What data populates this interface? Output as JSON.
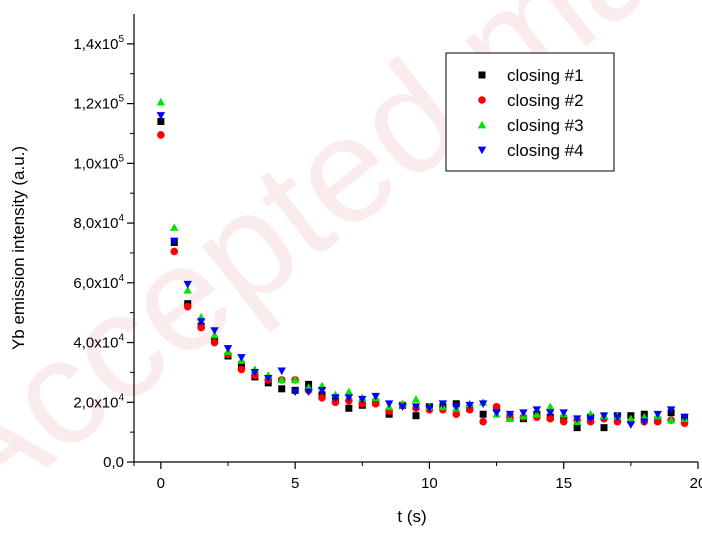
{
  "watermark": {
    "text": "Accepted manuscript"
  },
  "chart_data": {
    "type": "scatter",
    "xlabel": "t (s)",
    "ylabel": "Yb emission intensity (a.u.)",
    "xlim": [
      -1,
      20
    ],
    "ylim": [
      0,
      150000
    ],
    "x_ticks": [
      0,
      5,
      10,
      15,
      20
    ],
    "y_ticks": [
      {
        "value": 0,
        "mantissa": "0,0",
        "exponent": ""
      },
      {
        "value": 20000,
        "mantissa": "2,0x10",
        "exponent": "4"
      },
      {
        "value": 40000,
        "mantissa": "4,0x10",
        "exponent": "4"
      },
      {
        "value": 60000,
        "mantissa": "6,0x10",
        "exponent": "4"
      },
      {
        "value": 80000,
        "mantissa": "8,0x10",
        "exponent": "4"
      },
      {
        "value": 100000,
        "mantissa": "1,0x10",
        "exponent": "5"
      },
      {
        "value": 120000,
        "mantissa": "1,2x10",
        "exponent": "5"
      },
      {
        "value": 140000,
        "mantissa": "1,4x10",
        "exponent": "5"
      }
    ],
    "legend_position": "top-right",
    "series": [
      {
        "name": "closing #1",
        "marker": "square",
        "color": "#000000",
        "x": [
          0,
          0.5,
          1,
          1.5,
          2,
          2.5,
          3,
          3.5,
          4,
          4.5,
          5,
          5.5,
          6,
          6.5,
          7,
          7.5,
          8,
          8.5,
          9,
          9.5,
          10,
          10.5,
          11,
          11.5,
          12,
          12.5,
          13,
          13.5,
          14,
          14.5,
          15,
          15.5,
          16,
          16.5,
          17,
          17.5,
          18,
          18.5,
          19,
          19.5
        ],
        "y": [
          114000,
          73500,
          53000,
          45500,
          40500,
          35500,
          32500,
          28500,
          26500,
          24500,
          24000,
          26000,
          22500,
          21500,
          18000,
          19000,
          20000,
          16000,
          19000,
          15500,
          18500,
          18500,
          19500,
          18000,
          16000,
          18000,
          15000,
          14500,
          16000,
          15000,
          14500,
          11500,
          15000,
          11500,
          15500,
          15500,
          16000,
          14000,
          16500,
          15000
        ]
      },
      {
        "name": "closing #2",
        "marker": "circle",
        "color": "#ff0000",
        "x": [
          0,
          0.5,
          1,
          1.5,
          2,
          2.5,
          3,
          3.5,
          4,
          4.5,
          5,
          5.5,
          6,
          6.5,
          7,
          7.5,
          8,
          8.5,
          9,
          9.5,
          10,
          10.5,
          11,
          11.5,
          12,
          12.5,
          13,
          13.5,
          14,
          14.5,
          15,
          15.5,
          16,
          16.5,
          17,
          17.5,
          18,
          18.5,
          19,
          19.5
        ],
        "y": [
          109500,
          70500,
          52000,
          45000,
          40000,
          36000,
          31000,
          29000,
          27500,
          27500,
          27500,
          24000,
          21500,
          20000,
          20500,
          19500,
          19500,
          17000,
          19000,
          18000,
          17500,
          17500,
          16000,
          17500,
          13500,
          18500,
          15000,
          15000,
          15000,
          14500,
          13500,
          14000,
          13500,
          14500,
          13500,
          13500,
          13500,
          13500,
          14000,
          13000
        ]
      },
      {
        "name": "closing #3",
        "marker": "triangle-up",
        "color": "#00e600",
        "x": [
          0,
          0.5,
          1,
          1.5,
          2,
          2.5,
          3,
          3.5,
          4,
          4.5,
          5,
          5.5,
          6,
          6.5,
          7,
          7.5,
          8,
          8.5,
          9,
          9.5,
          10,
          10.5,
          11,
          11.5,
          12,
          12.5,
          13,
          13.5,
          14,
          14.5,
          15,
          15.5,
          16,
          16.5,
          17,
          17.5,
          18,
          18.5,
          19,
          19.5
        ],
        "y": [
          120500,
          78500,
          57500,
          48500,
          42500,
          37000,
          34000,
          31000,
          29000,
          27500,
          27500,
          25000,
          25500,
          22500,
          23500,
          21500,
          21500,
          18500,
          19500,
          21000,
          18500,
          18500,
          18000,
          19500,
          20000,
          16000,
          14500,
          15500,
          16000,
          18500,
          16000,
          13500,
          16000,
          15500,
          15500,
          14500,
          15000,
          15500,
          14000,
          14500
        ]
      },
      {
        "name": "closing #4",
        "marker": "triangle-down",
        "color": "#0000ff",
        "x": [
          0,
          0.5,
          1,
          1.5,
          2,
          2.5,
          3,
          3.5,
          4,
          4.5,
          5,
          5.5,
          6,
          6.5,
          7,
          7.5,
          8,
          8.5,
          9,
          9.5,
          10,
          10.5,
          11,
          11.5,
          12,
          12.5,
          13,
          13.5,
          14,
          14.5,
          15,
          15.5,
          16,
          16.5,
          17,
          17.5,
          18,
          18.5,
          19,
          19.5
        ],
        "y": [
          116000,
          74000,
          59500,
          47000,
          44000,
          38000,
          35000,
          30000,
          28000,
          30500,
          23500,
          23500,
          24000,
          21500,
          21500,
          21000,
          22000,
          19500,
          18500,
          18500,
          18000,
          19500,
          18500,
          19000,
          19500,
          16500,
          16000,
          16500,
          17500,
          16500,
          16500,
          14500,
          14500,
          15500,
          15000,
          12500,
          13500,
          16000,
          17500,
          15000
        ]
      }
    ]
  }
}
